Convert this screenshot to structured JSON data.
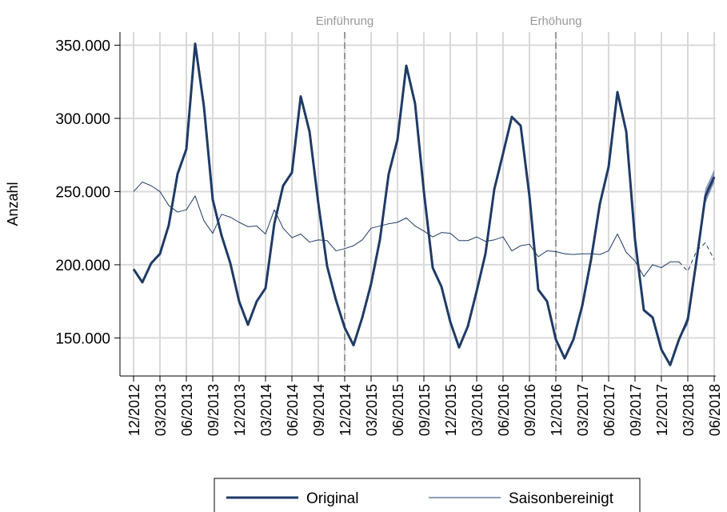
{
  "chart_data": {
    "type": "line",
    "y_label": "Anzahl",
    "categories": [
      "12/2012",
      null,
      null,
      "03/2013",
      null,
      null,
      "06/2013",
      null,
      null,
      "09/2013",
      null,
      null,
      "12/2013",
      null,
      null,
      "03/2014",
      null,
      null,
      "06/2014",
      null,
      null,
      "09/2014",
      null,
      null,
      "12/2014",
      null,
      null,
      "03/2015",
      null,
      null,
      "06/2015",
      null,
      null,
      "09/2015",
      null,
      null,
      "12/2015",
      null,
      null,
      "03/2016",
      null,
      null,
      "06/2016",
      null,
      null,
      "09/2016",
      null,
      null,
      "12/2016",
      null,
      null,
      "03/2017",
      null,
      null,
      "06/2017",
      null,
      null,
      "09/2017",
      null,
      null,
      "12/2017",
      null,
      null,
      "03/2018",
      null,
      null,
      "06/2018"
    ],
    "series": [
      {
        "name": "Original",
        "color": "#1f3b66",
        "width": 3,
        "values": [
          197000,
          188000,
          201000,
          207500,
          227000,
          262000,
          279000,
          351000,
          308000,
          244500,
          220000,
          201000,
          175000,
          159000,
          175000,
          184000,
          228000,
          254000,
          263000,
          315000,
          291000,
          242000,
          199000,
          176000,
          157000,
          145000,
          164000,
          187000,
          217000,
          262000,
          285500,
          336000,
          310000,
          250000,
          198000,
          185000,
          161000,
          143500,
          158000,
          182000,
          207500,
          251500,
          276000,
          301000,
          295000,
          247000,
          183000,
          175000,
          149000,
          136000,
          149000,
          172000,
          203500,
          241500,
          267000,
          318000,
          291000,
          217000,
          169000,
          164000,
          142000,
          131500,
          149000,
          null,
          null,
          null,
          null
        ]
      },
      {
        "name": "Saisonbereinigt",
        "color": "#1f3b66",
        "width": 1,
        "values": [
          250000,
          256500,
          254000,
          250000,
          240500,
          236000,
          237500,
          247000,
          230000,
          221500,
          234500,
          232500,
          229000,
          226000,
          226500,
          221000,
          237500,
          225000,
          218500,
          221000,
          215500,
          217000,
          216500,
          209500,
          211000,
          213000,
          217000,
          225000,
          226500,
          228000,
          229000,
          232000,
          226500,
          223000,
          219000,
          222000,
          221500,
          216500,
          216500,
          219000,
          216000,
          217000,
          219000,
          209500,
          213000,
          214000,
          205500,
          209500,
          209000,
          207500,
          207000,
          207500,
          207500,
          207000,
          209500,
          221000,
          208500,
          202500,
          192000,
          200000,
          198000,
          202000,
          202000,
          null,
          null,
          null,
          null
        ]
      },
      {
        "color": "#1f3b66",
        "width": 3,
        "band_color": "#5a6fa8",
        "values": [
          null,
          null,
          null,
          null,
          null,
          null,
          null,
          null,
          null,
          null,
          null,
          null,
          null,
          null,
          null,
          null,
          null,
          null,
          null,
          null,
          null,
          null,
          null,
          null,
          null,
          null,
          null,
          null,
          null,
          null,
          null,
          null,
          null,
          null,
          null,
          null,
          null,
          null,
          null,
          null,
          null,
          null,
          null,
          null,
          null,
          null,
          null,
          null,
          null,
          null,
          null,
          null,
          null,
          null,
          null,
          null,
          null,
          null,
          null,
          null,
          null,
          null,
          149000,
          162500,
          203500,
          247000,
          260000
        ],
        "lower": [
          null,
          null,
          null,
          null,
          null,
          null,
          null,
          null,
          null,
          null,
          null,
          null,
          null,
          null,
          null,
          null,
          null,
          null,
          null,
          null,
          null,
          null,
          null,
          null,
          null,
          null,
          null,
          null,
          null,
          null,
          null,
          null,
          null,
          null,
          null,
          null,
          null,
          null,
          null,
          null,
          null,
          null,
          null,
          null,
          null,
          null,
          null,
          null,
          null,
          null,
          null,
          null,
          null,
          null,
          null,
          null,
          null,
          null,
          null,
          null,
          null,
          null,
          149000,
          159000,
          199000,
          242000,
          256000
        ],
        "upper": [
          null,
          null,
          null,
          null,
          null,
          null,
          null,
          null,
          null,
          null,
          null,
          null,
          null,
          null,
          null,
          null,
          null,
          null,
          null,
          null,
          null,
          null,
          null,
          null,
          null,
          null,
          null,
          null,
          null,
          null,
          null,
          null,
          null,
          null,
          null,
          null,
          null,
          null,
          null,
          null,
          null,
          null,
          null,
          null,
          null,
          null,
          null,
          null,
          null,
          null,
          null,
          null,
          null,
          null,
          null,
          null,
          null,
          null,
          null,
          null,
          null,
          null,
          149000,
          166000,
          208000,
          252000,
          265000
        ]
      },
      {
        "color": "#1f3b66",
        "width": 1,
        "dashed": true,
        "values": [
          null,
          null,
          null,
          null,
          null,
          null,
          null,
          null,
          null,
          null,
          null,
          null,
          null,
          null,
          null,
          null,
          null,
          null,
          null,
          null,
          null,
          null,
          null,
          null,
          null,
          null,
          null,
          null,
          null,
          null,
          null,
          null,
          null,
          null,
          null,
          null,
          null,
          null,
          null,
          null,
          null,
          null,
          null,
          null,
          null,
          null,
          null,
          null,
          null,
          null,
          null,
          null,
          null,
          null,
          null,
          null,
          null,
          null,
          null,
          null,
          null,
          null,
          202000,
          195500,
          209500,
          215000,
          203500
        ]
      }
    ],
    "ylim": [
      124000,
      359000
    ],
    "yticks": [
      {
        "value": 150000,
        "label": "150.000"
      },
      {
        "value": 200000,
        "label": "200.000"
      },
      {
        "value": 250000,
        "label": "250.000"
      },
      {
        "value": 300000,
        "label": "300.000"
      },
      {
        "value": 350000,
        "label": "350.000"
      }
    ],
    "grid": true,
    "annotations": [
      {
        "label": "Einführung",
        "x": "12/2014"
      },
      {
        "label": "Erhöhung",
        "x": "12/2016"
      }
    ],
    "legend": "bottom"
  }
}
